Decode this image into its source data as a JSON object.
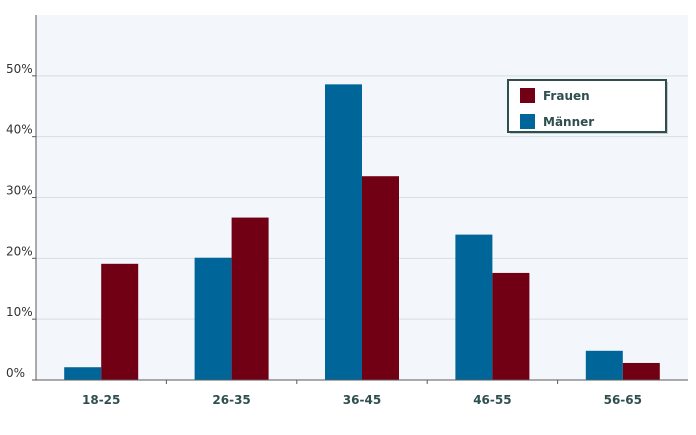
{
  "chart_data": {
    "type": "bar",
    "categories": [
      "18-25",
      "26-35",
      "36-45",
      "46-55",
      "56-65"
    ],
    "series": [
      {
        "name": "Männer",
        "values": [
          2.1,
          20.1,
          48.6,
          23.9,
          4.8
        ],
        "color": "#006699"
      },
      {
        "name": "Frauen",
        "values": [
          19.1,
          26.7,
          33.5,
          17.6,
          2.8
        ],
        "color": "#720014"
      }
    ],
    "ylim": [
      0,
      60
    ],
    "yticks": [
      0,
      10,
      20,
      30,
      40,
      50
    ],
    "ytick_format": "%",
    "grid": true,
    "legend": {
      "position": "top-right",
      "entries": [
        {
          "label": "Frauen",
          "color": "#720014"
        },
        {
          "label": "Männer",
          "color": "#006699"
        }
      ]
    },
    "colors": {
      "plot_background": "#f3f6fa",
      "grid": "#d7dde5",
      "axis": "#5a5a5a",
      "tick_label": "#333333",
      "category_label": "#2f4f4f",
      "legend_border": "#2f4f4f",
      "legend_text": "#2f4f4f"
    }
  }
}
